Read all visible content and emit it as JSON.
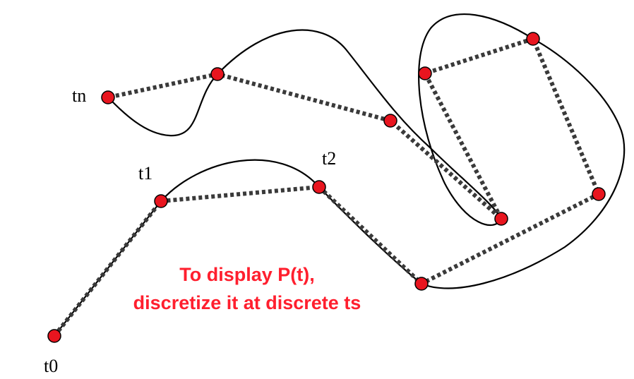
{
  "labels": {
    "t0": "t0",
    "t1": "t1",
    "t2": "t2",
    "tn": "tn"
  },
  "caption": {
    "line1": "To display P(t),",
    "line2": "discretize it at discrete ts"
  },
  "colors": {
    "curve": "#000000",
    "polyline": "#3a3a3a",
    "point_fill": "#e8151f",
    "point_stroke": "#000000",
    "caption": "#ff1f2e"
  }
}
